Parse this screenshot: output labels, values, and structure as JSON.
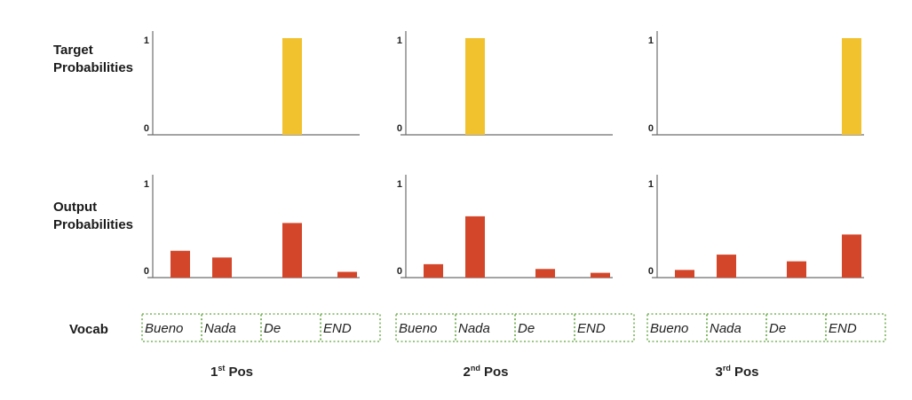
{
  "row_labels": {
    "target": [
      "Target",
      "Probabilities"
    ],
    "output": [
      "Output",
      "Probabilities"
    ],
    "vocab": "Vocab"
  },
  "vocab": [
    "Bueno",
    "Nada",
    "De",
    "END"
  ],
  "colors": {
    "target": "#f2c12e",
    "output": "#d4462a",
    "axis": "#6e6e6e",
    "vocab_border": "#7ab55c"
  },
  "chart_data": [
    {
      "type": "bar",
      "panel": "target",
      "position": {
        "ordinal": "1",
        "suffix": "st",
        "label": "Pos"
      },
      "categories": [
        "Bueno",
        "Nada",
        "De",
        "END"
      ],
      "values": [
        0,
        0,
        1,
        0
      ],
      "ylim": [
        0,
        1
      ],
      "yticks": [
        "0",
        "1"
      ]
    },
    {
      "type": "bar",
      "panel": "target",
      "position": {
        "ordinal": "2",
        "suffix": "nd",
        "label": "Pos"
      },
      "categories": [
        "Bueno",
        "Nada",
        "De",
        "END"
      ],
      "values": [
        0,
        1,
        0,
        0
      ],
      "ylim": [
        0,
        1
      ],
      "yticks": [
        "0",
        "1"
      ]
    },
    {
      "type": "bar",
      "panel": "target",
      "position": {
        "ordinal": "3",
        "suffix": "rd",
        "label": "Pos"
      },
      "categories": [
        "Bueno",
        "Nada",
        "De",
        "END"
      ],
      "values": [
        0,
        0,
        0,
        1
      ],
      "ylim": [
        0,
        1
      ],
      "yticks": [
        "0",
        "1"
      ]
    },
    {
      "type": "bar",
      "panel": "output",
      "position": {
        "ordinal": "1",
        "suffix": "st",
        "label": "Pos"
      },
      "categories": [
        "Bueno",
        "Nada",
        "De",
        "END"
      ],
      "values": [
        0.28,
        0.21,
        0.57,
        0.06
      ],
      "ylim": [
        0,
        1
      ],
      "yticks": [
        "0",
        "1"
      ]
    },
    {
      "type": "bar",
      "panel": "output",
      "position": {
        "ordinal": "2",
        "suffix": "nd",
        "label": "Pos"
      },
      "categories": [
        "Bueno",
        "Nada",
        "De",
        "END"
      ],
      "values": [
        0.14,
        0.64,
        0.09,
        0.05
      ],
      "ylim": [
        0,
        1
      ],
      "yticks": [
        "0",
        "1"
      ]
    },
    {
      "type": "bar",
      "panel": "output",
      "position": {
        "ordinal": "3",
        "suffix": "rd",
        "label": "Pos"
      },
      "categories": [
        "Bueno",
        "Nada",
        "De",
        "END"
      ],
      "values": [
        0.08,
        0.24,
        0.17,
        0.45
      ],
      "ylim": [
        0,
        1
      ],
      "yticks": [
        "0",
        "1"
      ]
    }
  ]
}
